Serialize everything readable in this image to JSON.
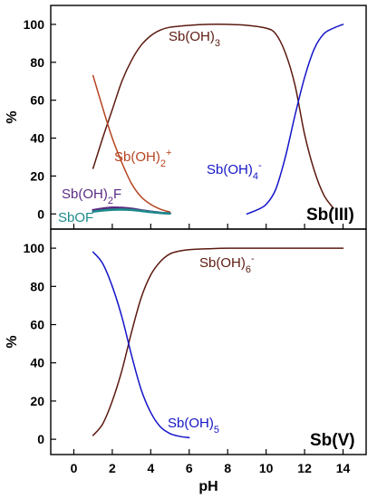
{
  "chart_data": [
    {
      "type": "line",
      "panel_label": "Sb(III)",
      "ylabel": "%",
      "xlim": [
        -1.2,
        15.2
      ],
      "ylim": [
        -8,
        110
      ],
      "x_ticks": [
        0,
        2,
        4,
        6,
        8,
        10,
        12,
        14
      ],
      "y_ticks": [
        0,
        20,
        40,
        60,
        80,
        100
      ],
      "colors": {
        "brown": "#5c1a10",
        "blue": "#1515c8",
        "orange": "#b5431f",
        "purple": "#5a2a82",
        "teal": "#1d8a8a",
        "navy": "#2e3f78"
      },
      "series": [
        {
          "name": "Sb(OH)3",
          "label_main": "Sb(OH)",
          "label_sub": "3",
          "label_sup": "",
          "color": "#5c1a10",
          "x": [
            1,
            1.5,
            2,
            2.5,
            3,
            3.5,
            4,
            4.5,
            5,
            6,
            7,
            8,
            9,
            10,
            10.5,
            11,
            11.5,
            12,
            12.5,
            13,
            13.5
          ],
          "y": [
            24,
            40,
            55,
            70,
            81,
            89,
            94,
            97,
            98.5,
            99.5,
            100,
            100,
            99.5,
            98,
            95,
            85,
            68,
            42,
            23,
            10,
            3
          ]
        },
        {
          "name": "Sb(OH)4-",
          "label_main": "Sb(OH)",
          "label_sub": "4",
          "label_sup": "-",
          "color": "#1515c8",
          "x": [
            9,
            9.5,
            10,
            10.5,
            11,
            11.5,
            12,
            12.5,
            13,
            13.5,
            14
          ],
          "y": [
            0,
            2,
            5,
            13,
            30,
            52,
            72,
            87,
            95,
            98,
            100
          ]
        },
        {
          "name": "Sb(OH)2+",
          "label_main": "Sb(OH)",
          "label_sub": "2",
          "label_sup": "+",
          "color": "#b5431f",
          "x": [
            1,
            1.5,
            2,
            2.5,
            3,
            3.5,
            4,
            4.5,
            5
          ],
          "y": [
            73,
            56,
            40,
            27,
            16,
            9,
            5,
            2.5,
            1
          ]
        },
        {
          "name": "Sb(OH)2F",
          "label_main": "Sb(OH)",
          "label_sub": "2",
          "label_sup": "F",
          "color": "#5a2a82",
          "x": [
            1,
            1.5,
            2,
            2.5,
            3,
            3.5,
            4,
            4.5,
            5
          ],
          "y": [
            2,
            2.8,
            3.3,
            3.2,
            2.7,
            1.9,
            1.2,
            0.6,
            0.3
          ]
        },
        {
          "name": "SbOF",
          "label_main": "SbOF",
          "label_sub": "",
          "label_sup": "",
          "color": "#1d8a8a",
          "x": [
            1,
            1.5,
            2,
            2.5,
            3,
            3.5,
            4,
            4.5,
            5
          ],
          "y": [
            1.2,
            1.8,
            2.2,
            2.3,
            2.1,
            1.6,
            1,
            0.5,
            0.2
          ]
        }
      ]
    },
    {
      "type": "line",
      "panel_label": "Sb(V)",
      "ylabel": "%",
      "xlabel": "pH",
      "xlim": [
        -1.2,
        15.2
      ],
      "ylim": [
        -8,
        110
      ],
      "x_ticks": [
        0,
        2,
        4,
        6,
        8,
        10,
        12,
        14
      ],
      "y_ticks": [
        0,
        20,
        40,
        60,
        80,
        100
      ],
      "series": [
        {
          "name": "Sb(OH)6-",
          "label_main": "Sb(OH)",
          "label_sub": "6",
          "label_sup": "-",
          "color": "#5c1a10",
          "x": [
            1,
            1.5,
            2,
            2.5,
            3,
            3.5,
            4,
            4.5,
            5,
            5.5,
            6,
            7,
            8,
            10,
            12,
            14
          ],
          "y": [
            2,
            8,
            20,
            36,
            56,
            74,
            86,
            93,
            97,
            98.5,
            99.2,
            99.7,
            100,
            100,
            100,
            100
          ]
        },
        {
          "name": "Sb(OH)5",
          "label_main": "Sb(OH)",
          "label_sub": "5",
          "label_sup": "",
          "color": "#1515c8",
          "x": [
            1,
            1.5,
            2,
            2.5,
            3,
            3.5,
            4,
            4.5,
            5,
            5.5,
            6
          ],
          "y": [
            98,
            92,
            80,
            64,
            44,
            26,
            14,
            6.5,
            3,
            1.5,
            0.8
          ]
        }
      ]
    }
  ]
}
